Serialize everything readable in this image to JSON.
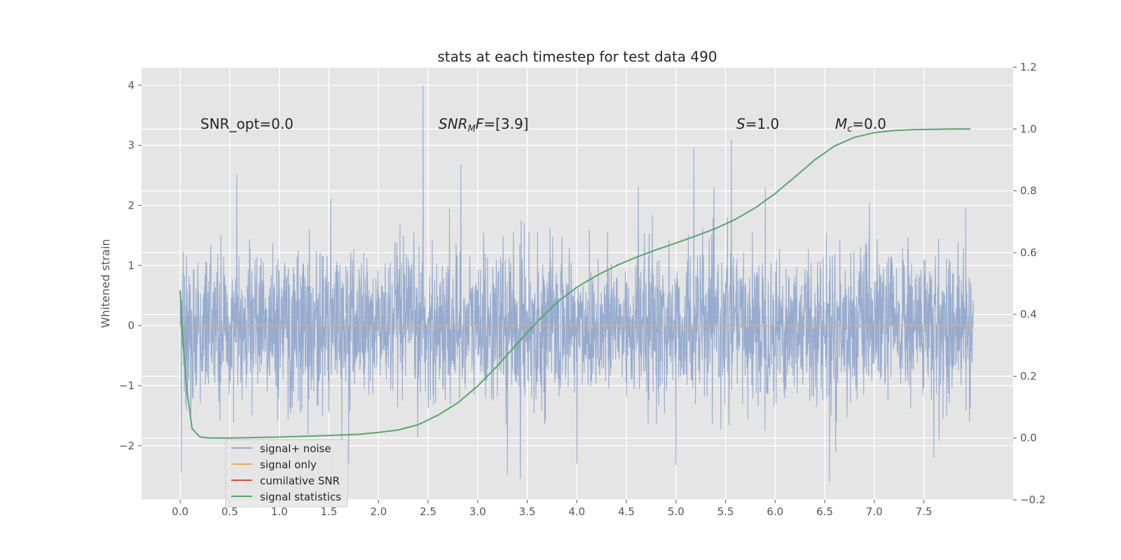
{
  "chart_data": {
    "type": "line",
    "title": "stats at each timestep for test data 490",
    "ylabel": "Whitened strain",
    "y2label": "",
    "xlim": [
      -0.39,
      8.4
    ],
    "ylim": [
      -2.9,
      4.3
    ],
    "y2lim": [
      -0.2,
      1.2
    ],
    "xticks": [
      0.0,
      0.5,
      1.0,
      1.5,
      2.0,
      2.5,
      3.0,
      3.5,
      4.0,
      4.5,
      5.0,
      5.5,
      6.0,
      6.5,
      7.0,
      7.5
    ],
    "xtick_labels": [
      "0.0",
      "0.5",
      "1.0",
      "1.5",
      "2.0",
      "2.5",
      "3.0",
      "3.5",
      "4.0",
      "4.5",
      "5.0",
      "5.5",
      "6.0",
      "6.5",
      "7.0",
      "7.5"
    ],
    "yticks": [
      -2,
      -1,
      0,
      1,
      2,
      3,
      4
    ],
    "ytick_labels": [
      "−2",
      "−1",
      "0",
      "1",
      "2",
      "3",
      "4"
    ],
    "y2ticks": [
      -0.2,
      0.0,
      0.2,
      0.4,
      0.6,
      0.8,
      1.0,
      1.2
    ],
    "y2tick_labels": [
      "−0.2",
      "0.0",
      "0.2",
      "0.4",
      "0.6",
      "0.8",
      "1.0",
      "1.2"
    ],
    "grid": true,
    "legend_position": "lower-left",
    "series": [
      {
        "name": "signal+ noise",
        "color": "#92a8cd",
        "axis": "left",
        "x_range": [
          0.0,
          8.0
        ],
        "noise_std": 0.62,
        "spikes": [
          [
            2.45,
            4.0
          ],
          [
            5.56,
            3.1
          ],
          [
            5.18,
            2.96
          ],
          [
            2.83,
            2.68
          ],
          [
            0.57,
            2.52
          ],
          [
            3.3,
            -2.48
          ],
          [
            3.43,
            -2.55
          ],
          [
            6.55,
            -2.6
          ],
          [
            0.01,
            -2.45
          ],
          [
            4.0,
            -2.3
          ],
          [
            5.0,
            -2.32
          ],
          [
            7.6,
            -2.2
          ],
          [
            1.7,
            -2.3
          ],
          [
            4.62,
            2.3
          ],
          [
            5.9,
            2.3
          ]
        ]
      },
      {
        "name": "signal only",
        "color": "#f0ad4e",
        "axis": "left",
        "x": [
          0.0,
          8.0
        ],
        "values": [
          0.0,
          0.0
        ]
      },
      {
        "name": "cumilative SNR",
        "color": "#e24a33",
        "axis": "left",
        "x": [],
        "values": []
      },
      {
        "name": "signal statistics",
        "color": "#55a868",
        "axis": "right",
        "x": [
          0.0,
          0.03,
          0.07,
          0.12,
          0.2,
          0.3,
          0.5,
          0.8,
          1.0,
          1.5,
          1.8,
          2.0,
          2.2,
          2.4,
          2.6,
          2.8,
          3.0,
          3.2,
          3.4,
          3.6,
          3.8,
          4.0,
          4.2,
          4.4,
          4.6,
          4.8,
          5.0,
          5.2,
          5.4,
          5.6,
          5.8,
          6.0,
          6.2,
          6.4,
          6.6,
          6.8,
          7.0,
          7.2,
          7.4,
          7.6,
          7.8,
          7.97
        ],
        "values": [
          0.478,
          0.3,
          0.15,
          0.03,
          0.003,
          0.0,
          0.0,
          0.002,
          0.003,
          0.008,
          0.012,
          0.018,
          0.026,
          0.043,
          0.074,
          0.114,
          0.168,
          0.234,
          0.306,
          0.376,
          0.439,
          0.488,
          0.526,
          0.558,
          0.585,
          0.609,
          0.631,
          0.654,
          0.678,
          0.708,
          0.745,
          0.791,
          0.845,
          0.9,
          0.945,
          0.973,
          0.988,
          0.995,
          0.998,
          0.999,
          1.0,
          1.0
        ]
      }
    ],
    "annotations": [
      {
        "text": "SNR_opt=0.0",
        "x": 0.2,
        "y": 3.3
      },
      {
        "text": "SNR_MF=[3.9]",
        "x": 2.6,
        "y": 3.3
      },
      {
        "text": "S=1.0",
        "x": 5.6,
        "y": 3.3
      },
      {
        "text": "M_c=0.0",
        "x": 6.6,
        "y": 3.3
      }
    ]
  }
}
